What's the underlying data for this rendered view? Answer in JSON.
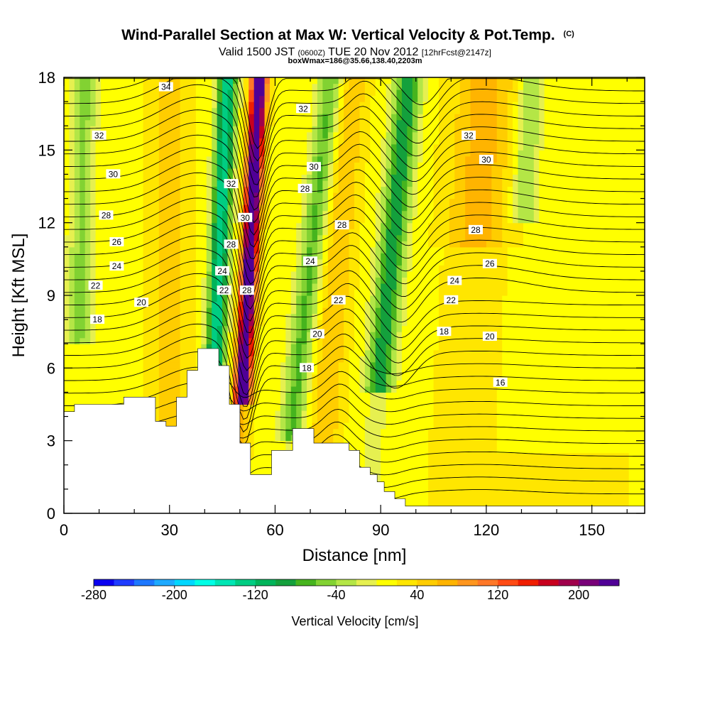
{
  "chart_data": {
    "type": "heatmap",
    "title_main": "Wind-Parallel Section at Max W: Vertical Velocity & Pot.Temp.",
    "title_mark": "(C)",
    "subtitle_parts": [
      "Valid 1500 JST ",
      "(0600Z)",
      " TUE 20 Nov 2012 ",
      "[12hrFcst@2147z]"
    ],
    "subtitle2": "boxWmax=186@35.66,138.40,2203m",
    "xlabel": "Distance [nm]",
    "ylabel": "Height [Kft MSL]",
    "xlim": [
      0,
      165
    ],
    "ylim": [
      0,
      18
    ],
    "x_ticks": [
      "0",
      "30",
      "60",
      "90",
      "120",
      "150"
    ],
    "y_ticks": [
      "0",
      "3",
      "6",
      "9",
      "12",
      "15",
      "18"
    ],
    "colorbar": {
      "label": "Vertical Velocity [cm/s]",
      "tick_labels": [
        "-280",
        "-200",
        "-120",
        "-40",
        "40",
        "120",
        "200"
      ],
      "colors": [
        "#0a00f0",
        "#1f3cff",
        "#1e78ff",
        "#1eaaff",
        "#00d7ff",
        "#00ffe6",
        "#00e6b4",
        "#00cd82",
        "#00b45a",
        "#14a03c",
        "#46b41e",
        "#82d232",
        "#b4e646",
        "#e6f050",
        "#ffff00",
        "#ffe600",
        "#ffcd00",
        "#ffb400",
        "#ff961e",
        "#ff7828",
        "#ff4b14",
        "#f01e00",
        "#c8001e",
        "#a0004b",
        "#780078",
        "#500096"
      ]
    },
    "isentrope_labels": [
      {
        "text": "34",
        "d": 29,
        "z": 17.6
      },
      {
        "text": "32",
        "d": 10,
        "z": 15.6
      },
      {
        "text": "30",
        "d": 14,
        "z": 14.0
      },
      {
        "text": "28",
        "d": 12,
        "z": 12.3
      },
      {
        "text": "26",
        "d": 15,
        "z": 11.2
      },
      {
        "text": "24",
        "d": 15,
        "z": 10.2
      },
      {
        "text": "22",
        "d": 9,
        "z": 9.4
      },
      {
        "text": "20",
        "d": 22,
        "z": 8.7
      },
      {
        "text": "18",
        "d": 9.5,
        "z": 8.0
      },
      {
        "text": "32",
        "d": 47.5,
        "z": 13.6
      },
      {
        "text": "30",
        "d": 51.5,
        "z": 12.2
      },
      {
        "text": "28",
        "d": 47.5,
        "z": 11.1
      },
      {
        "text": "24",
        "d": 45,
        "z": 10.0
      },
      {
        "text": "22",
        "d": 45.5,
        "z": 9.2
      },
      {
        "text": "28",
        "d": 52,
        "z": 9.2
      },
      {
        "text": "32",
        "d": 68,
        "z": 16.7
      },
      {
        "text": "30",
        "d": 71,
        "z": 14.3
      },
      {
        "text": "28",
        "d": 68.5,
        "z": 13.4
      },
      {
        "text": "24",
        "d": 70,
        "z": 10.4
      },
      {
        "text": "28",
        "d": 79,
        "z": 11.9
      },
      {
        "text": "22",
        "d": 78,
        "z": 8.8
      },
      {
        "text": "20",
        "d": 72,
        "z": 7.4
      },
      {
        "text": "18",
        "d": 69,
        "z": 6.0
      },
      {
        "text": "32",
        "d": 115,
        "z": 15.6
      },
      {
        "text": "30",
        "d": 120,
        "z": 14.6
      },
      {
        "text": "28",
        "d": 117,
        "z": 11.7
      },
      {
        "text": "26",
        "d": 121,
        "z": 10.3
      },
      {
        "text": "24",
        "d": 111,
        "z": 9.6
      },
      {
        "text": "22",
        "d": 110,
        "z": 8.8
      },
      {
        "text": "18",
        "d": 108,
        "z": 7.5
      },
      {
        "text": "20",
        "d": 121,
        "z": 7.3
      },
      {
        "text": "16",
        "d": 124,
        "z": 5.4
      }
    ]
  }
}
